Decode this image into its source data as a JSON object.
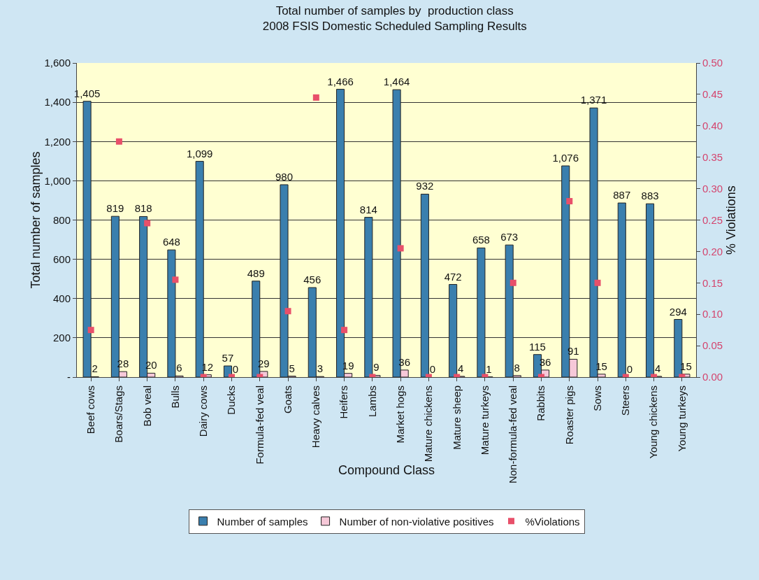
{
  "chart_data": {
    "type": "bar",
    "title": "Total number of samples by  production class\n2008 FSIS Domestic Scheduled Sampling Results",
    "xlabel": "Compound Class",
    "ylabel": "Total number of samples",
    "y2label": "% Violations",
    "categories": [
      "Beef cows",
      "Boars/Stags",
      "Bob veal",
      "Bulls",
      "Dairy cows",
      "Ducks",
      "Formula-fed veal",
      "Goats",
      "Heavy calves",
      "Heifers",
      "Lambs",
      "Market hogs",
      "Mature chickens",
      "Mature sheep",
      "Mature turkeys",
      "Non-formula-fed veal",
      "Rabbits",
      "Roaster pigs",
      "Sows",
      "Steers",
      "Young chickens",
      "Young turkeys"
    ],
    "series": [
      {
        "name": "Number of samples",
        "color": "#3a7fae",
        "values": [
          1405,
          819,
          818,
          648,
          1099,
          57,
          489,
          980,
          456,
          1466,
          814,
          1464,
          932,
          472,
          658,
          673,
          115,
          1076,
          1371,
          887,
          883,
          294
        ],
        "value_labels": [
          "1,405",
          "819",
          "818",
          "648",
          "1,099",
          "57",
          "489",
          "980",
          "456",
          "1,466",
          "814",
          "1,464",
          "932",
          "472",
          "658",
          "673",
          "115",
          "1,076",
          "1,371",
          "887",
          "883",
          "294"
        ]
      },
      {
        "name": "Number of non-violative positives",
        "color": "#f6c8d8",
        "values": [
          2,
          28,
          20,
          6,
          12,
          0,
          29,
          5,
          3,
          19,
          9,
          36,
          0,
          4,
          1,
          8,
          36,
          91,
          15,
          0,
          4,
          15
        ],
        "value_labels": [
          "2",
          "28",
          "20",
          "6",
          "12",
          "0",
          "29",
          "5",
          "3",
          "19",
          "9",
          "36",
          "0",
          "4",
          "1",
          "8",
          "36",
          "91",
          "15",
          "0",
          "4",
          "15"
        ]
      },
      {
        "name": "%Violations",
        "type": "scatter",
        "axis": "y2",
        "marker": "square",
        "color": "#e8506a",
        "values": [
          0.075,
          0.375,
          0.245,
          0.155,
          0,
          0,
          0,
          0.105,
          0.445,
          0.075,
          0,
          0.205,
          0,
          0,
          0,
          0.15,
          0,
          0.28,
          0.15,
          0,
          0,
          0
        ]
      }
    ],
    "ylim": [
      0,
      1600
    ],
    "yticks": [
      {
        "value": 0,
        "label": "-"
      },
      200,
      400,
      600,
      800,
      {
        "value": 1000,
        "label": "1,000"
      },
      {
        "value": 1200,
        "label": "1,200"
      },
      {
        "value": 1400,
        "label": "1,400"
      },
      {
        "value": 1600,
        "label": "1,600"
      }
    ],
    "y2lim": [
      0,
      0.5
    ],
    "y2ticks": [
      {
        "value": 0,
        "label": "0.00"
      },
      0.05,
      {
        "value": 0.1,
        "label": "0.10"
      },
      0.15,
      {
        "value": 0.2,
        "label": "0.20"
      },
      0.25,
      {
        "value": 0.3,
        "label": "0.30"
      },
      0.35,
      {
        "value": 0.4,
        "label": "0.40"
      },
      0.45,
      {
        "value": 0.5,
        "label": "0.50"
      }
    ],
    "grid": "y",
    "legend": "bottom"
  }
}
